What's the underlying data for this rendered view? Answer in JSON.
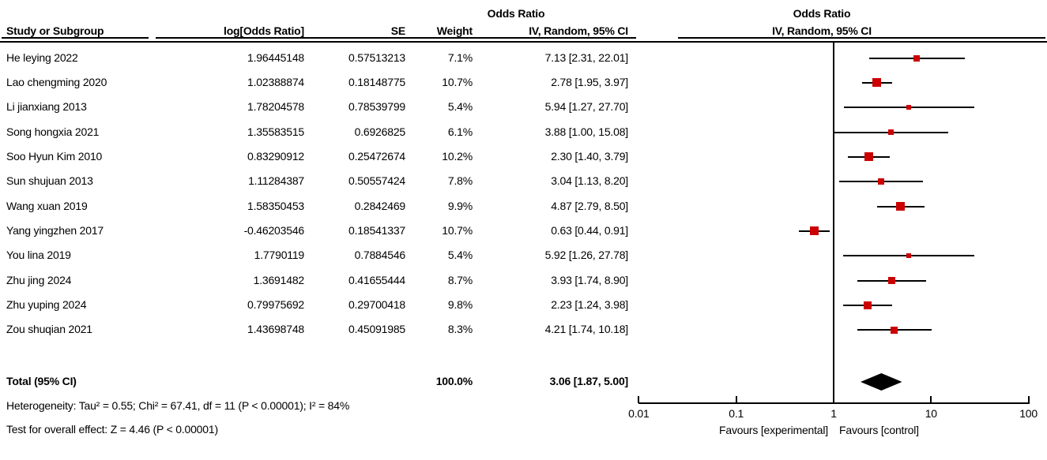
{
  "header": {
    "effect_col_title": "Odds Ratio",
    "plot_col_title": "Odds Ratio",
    "study_col": "Study or Subgroup",
    "logor_col": "log[Odds Ratio]",
    "se_col": "SE",
    "weight_col": "Weight",
    "ci_col": "IV, Random, 95% CI",
    "plot_ci_col": "IV, Random, 95% CI"
  },
  "footer": {
    "heterogeneity": "Heterogeneity: Tau² = 0.55; Chi² = 67.41, df = 11 (P < 0.00001); I² = 84%",
    "overall_effect": "Test for overall effect: Z = 4.46 (P < 0.00001)"
  },
  "axis": {
    "tick_labels": [
      "0.01",
      "0.1",
      "1",
      "10",
      "100"
    ],
    "favours_left": "Favours [experimental]",
    "favours_right": "Favours [control]"
  },
  "colors": {
    "marker": "#CC0000",
    "line": "#000000",
    "diamond": "#000000"
  },
  "chart_data": {
    "type": "forest",
    "effect_measure": "Odds Ratio",
    "method": "IV, Random, 95% CI",
    "x_scale": "log10",
    "x_ticks": [
      0.01,
      0.1,
      1,
      10,
      100
    ],
    "x_range": [
      0.01,
      100
    ],
    "null_line": 1,
    "studies": [
      {
        "name": "He leying 2022",
        "log_or": "1.96445148",
        "se": "0.57513213",
        "weight": "7.1%",
        "weight_pct": 7.1,
        "ci_label": "7.13 [2.31, 22.01]",
        "or": 7.13,
        "ci_low": 2.31,
        "ci_high": 22.01
      },
      {
        "name": "Lao chengming 2020",
        "log_or": "1.02388874",
        "se": "0.18148775",
        "weight": "10.7%",
        "weight_pct": 10.7,
        "ci_label": "2.78 [1.95, 3.97]",
        "or": 2.78,
        "ci_low": 1.95,
        "ci_high": 3.97
      },
      {
        "name": "Li jianxiang 2013",
        "log_or": "1.78204578",
        "se": "0.78539799",
        "weight": "5.4%",
        "weight_pct": 5.4,
        "ci_label": "5.94 [1.27, 27.70]",
        "or": 5.94,
        "ci_low": 1.27,
        "ci_high": 27.7
      },
      {
        "name": "Song hongxia 2021",
        "log_or": "1.35583515",
        "se": "0.6926825",
        "weight": "6.1%",
        "weight_pct": 6.1,
        "ci_label": "3.88 [1.00, 15.08]",
        "or": 3.88,
        "ci_low": 1.0,
        "ci_high": 15.08
      },
      {
        "name": "Soo Hyun Kim 2010",
        "log_or": "0.83290912",
        "se": "0.25472674",
        "weight": "10.2%",
        "weight_pct": 10.2,
        "ci_label": "2.30 [1.40, 3.79]",
        "or": 2.3,
        "ci_low": 1.4,
        "ci_high": 3.79
      },
      {
        "name": "Sun shujuan 2013",
        "log_or": "1.11284387",
        "se": "0.50557424",
        "weight": "7.8%",
        "weight_pct": 7.8,
        "ci_label": "3.04 [1.13, 8.20]",
        "or": 3.04,
        "ci_low": 1.13,
        "ci_high": 8.2
      },
      {
        "name": "Wang xuan 2019",
        "log_or": "1.58350453",
        "se": "0.2842469",
        "weight": "9.9%",
        "weight_pct": 9.9,
        "ci_label": "4.87 [2.79, 8.50]",
        "or": 4.87,
        "ci_low": 2.79,
        "ci_high": 8.5
      },
      {
        "name": "Yang yingzhen 2017",
        "log_or": "-0.46203546",
        "se": "0.18541337",
        "weight": "10.7%",
        "weight_pct": 10.7,
        "ci_label": "0.63 [0.44, 0.91]",
        "or": 0.63,
        "ci_low": 0.44,
        "ci_high": 0.91
      },
      {
        "name": "You lina 2019",
        "log_or": "1.7790119",
        "se": "0.7884546",
        "weight": "5.4%",
        "weight_pct": 5.4,
        "ci_label": "5.92 [1.26, 27.78]",
        "or": 5.92,
        "ci_low": 1.26,
        "ci_high": 27.78
      },
      {
        "name": "Zhu jing 2024",
        "log_or": "1.3691482",
        "se": "0.41655444",
        "weight": "8.7%",
        "weight_pct": 8.7,
        "ci_label": "3.93 [1.74, 8.90]",
        "or": 3.93,
        "ci_low": 1.74,
        "ci_high": 8.9
      },
      {
        "name": "Zhu yuping 2024",
        "log_or": "0.79975692",
        "se": "0.29700418",
        "weight": "9.8%",
        "weight_pct": 9.8,
        "ci_label": "2.23 [1.24, 3.98]",
        "or": 2.23,
        "ci_low": 1.24,
        "ci_high": 3.98
      },
      {
        "name": "Zou shuqian 2021",
        "log_or": "1.43698748",
        "se": "0.45091985",
        "weight": "8.3%",
        "weight_pct": 8.3,
        "ci_label": "4.21 [1.74, 10.18]",
        "or": 4.21,
        "ci_low": 1.74,
        "ci_high": 10.18
      }
    ],
    "total": {
      "label": "Total (95% CI)",
      "weight": "100.0%",
      "ci_label": "3.06 [1.87, 5.00]",
      "or": 3.06,
      "ci_low": 1.87,
      "ci_high": 5.0
    }
  }
}
